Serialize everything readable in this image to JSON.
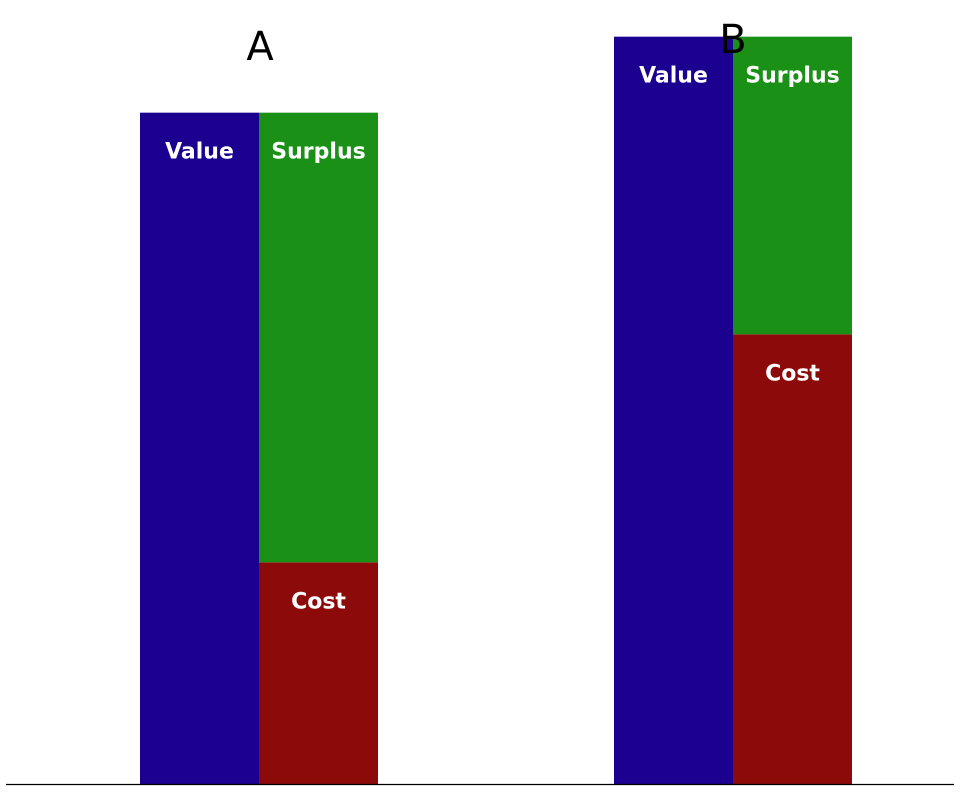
{
  "chart_data": {
    "type": "bar",
    "subtype": "stacked-comparison",
    "baseline": true,
    "y_extent": [
      0,
      12
    ],
    "colors": {
      "value": "#1c0090",
      "surplus": "#1a9116",
      "cost": "#8c0a0a",
      "axis": "#000000"
    },
    "panels": [
      {
        "title": "A",
        "value_bar": {
          "label": "Value",
          "value": 10.6
        },
        "stack": [
          {
            "label": "Cost",
            "value": 3.5,
            "color_key": "cost"
          },
          {
            "label": "Surplus",
            "value": 7.1,
            "color_key": "surplus"
          }
        ]
      },
      {
        "title": "B",
        "value_bar": {
          "label": "Value",
          "value": 11.8
        },
        "stack": [
          {
            "label": "Cost",
            "value": 7.1,
            "color_key": "cost"
          },
          {
            "label": "Surplus",
            "value": 4.7,
            "color_key": "surplus"
          }
        ]
      }
    ]
  }
}
